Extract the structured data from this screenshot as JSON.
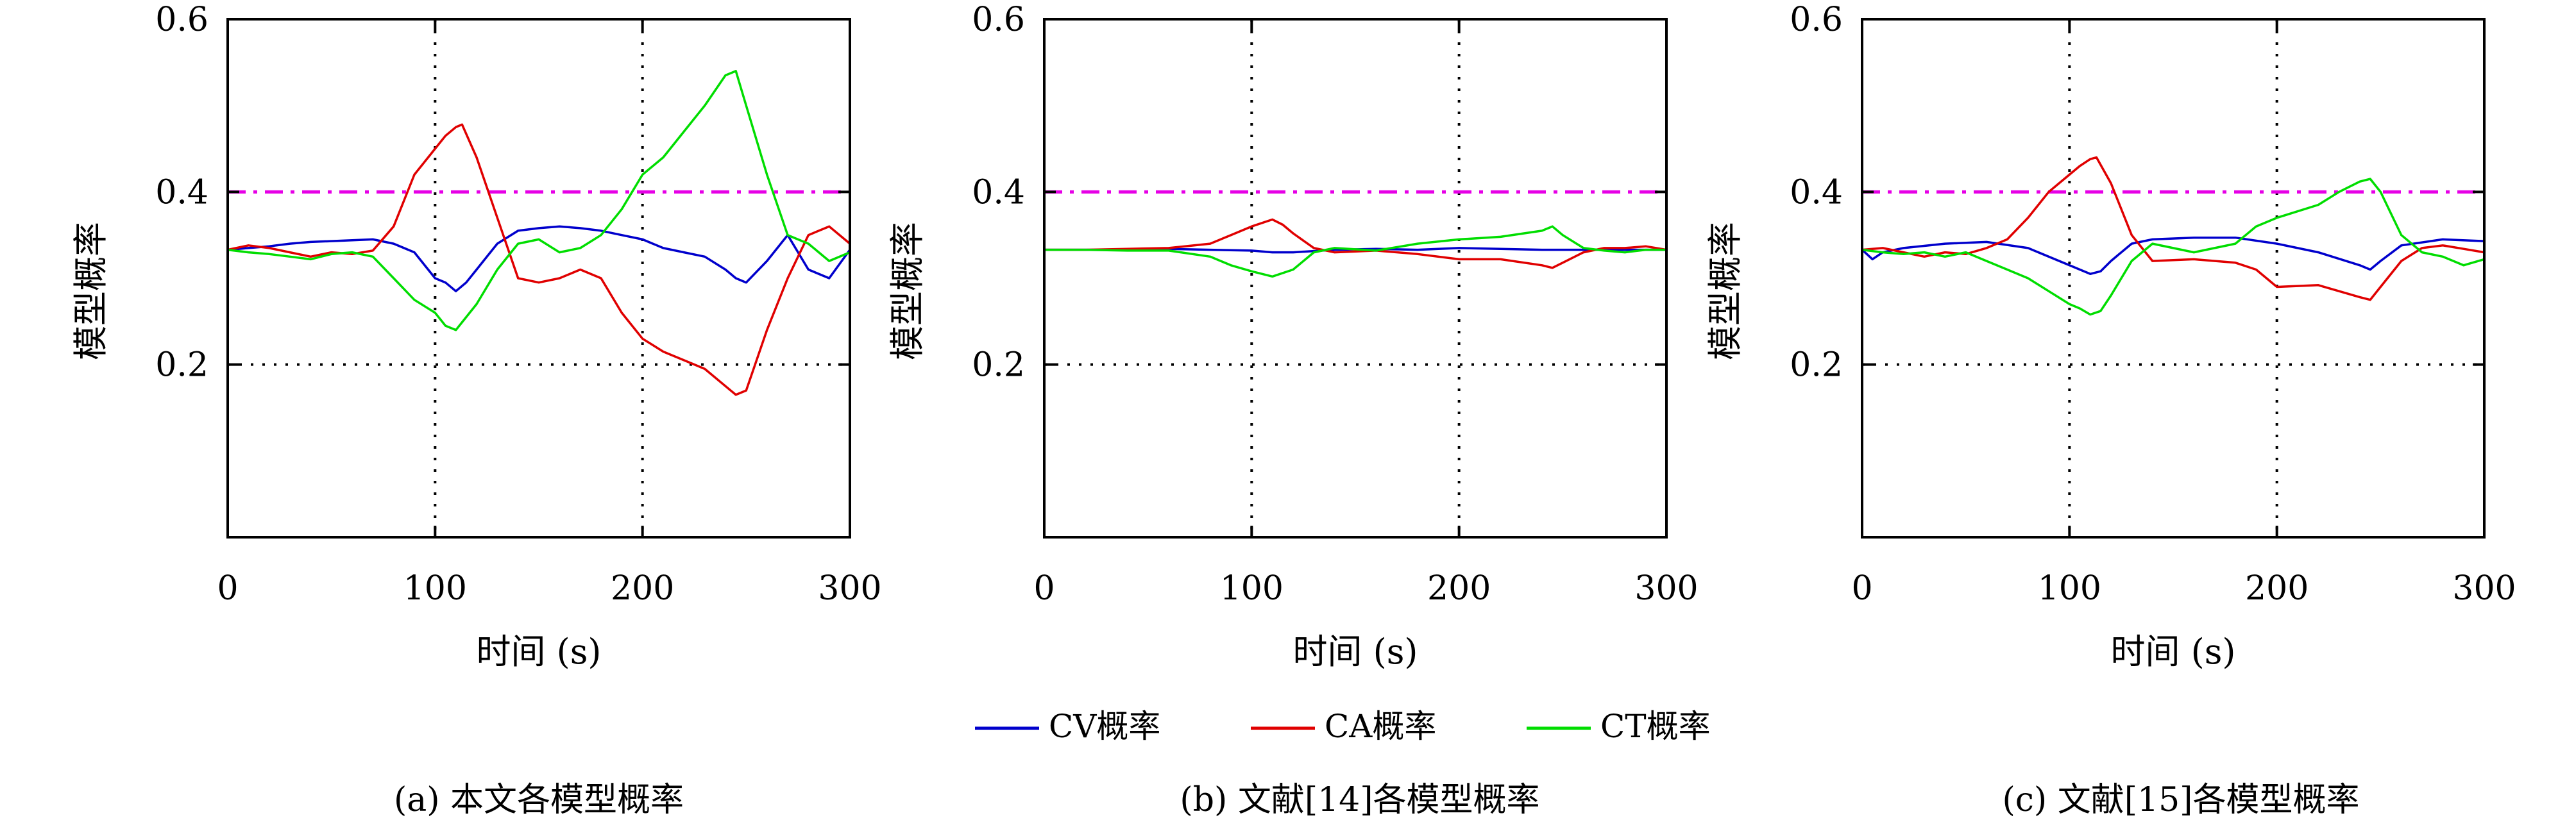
{
  "legend": [
    {
      "label": "CV概率",
      "color": "#0000cc"
    },
    {
      "label": "CA概率",
      "color": "#e00000"
    },
    {
      "label": "CT概率",
      "color": "#00dd00"
    }
  ],
  "reference_color": "#e600e6",
  "chart_data": [
    {
      "type": "line",
      "caption": "(a) 本文各模型概率",
      "xlabel": "时间 (s)",
      "ylabel": "模型概率",
      "xlim": [
        0,
        300
      ],
      "ylim": [
        0,
        0.6
      ],
      "xticks": [
        0,
        100,
        200,
        300
      ],
      "yticks": [
        0.2,
        0.4,
        0.6
      ],
      "grid": "dotted",
      "reference_line": 0.4,
      "series": [
        {
          "name": "CV概率",
          "x": [
            0,
            10,
            20,
            30,
            40,
            50,
            60,
            70,
            80,
            90,
            100,
            105,
            110,
            115,
            120,
            130,
            140,
            150,
            160,
            170,
            180,
            190,
            200,
            210,
            220,
            230,
            240,
            245,
            250,
            260,
            270,
            280,
            290,
            300
          ],
          "y": [
            0.333,
            0.335,
            0.337,
            0.34,
            0.342,
            0.343,
            0.344,
            0.345,
            0.34,
            0.33,
            0.3,
            0.295,
            0.285,
            0.295,
            0.31,
            0.34,
            0.355,
            0.358,
            0.36,
            0.358,
            0.355,
            0.35,
            0.345,
            0.335,
            0.33,
            0.325,
            0.31,
            0.3,
            0.295,
            0.32,
            0.35,
            0.31,
            0.3,
            0.333
          ]
        },
        {
          "name": "CA概率",
          "x": [
            0,
            10,
            20,
            30,
            40,
            50,
            60,
            70,
            80,
            90,
            100,
            105,
            110,
            113,
            120,
            130,
            140,
            150,
            160,
            170,
            180,
            190,
            200,
            210,
            220,
            230,
            240,
            245,
            250,
            260,
            270,
            280,
            290,
            300
          ],
          "y": [
            0.333,
            0.338,
            0.335,
            0.33,
            0.325,
            0.33,
            0.328,
            0.332,
            0.36,
            0.42,
            0.45,
            0.465,
            0.475,
            0.478,
            0.44,
            0.37,
            0.3,
            0.295,
            0.3,
            0.31,
            0.3,
            0.26,
            0.23,
            0.215,
            0.205,
            0.195,
            0.175,
            0.165,
            0.17,
            0.24,
            0.3,
            0.35,
            0.36,
            0.34
          ]
        },
        {
          "name": "CT概率",
          "x": [
            0,
            10,
            20,
            30,
            40,
            50,
            60,
            70,
            80,
            90,
            100,
            105,
            110,
            120,
            130,
            140,
            150,
            160,
            170,
            180,
            190,
            200,
            210,
            220,
            230,
            240,
            245,
            250,
            260,
            270,
            280,
            290,
            300
          ],
          "y": [
            0.333,
            0.33,
            0.328,
            0.325,
            0.322,
            0.328,
            0.33,
            0.325,
            0.3,
            0.275,
            0.26,
            0.245,
            0.24,
            0.27,
            0.31,
            0.34,
            0.345,
            0.33,
            0.335,
            0.35,
            0.38,
            0.42,
            0.44,
            0.47,
            0.5,
            0.535,
            0.54,
            0.5,
            0.42,
            0.35,
            0.34,
            0.32,
            0.33
          ]
        }
      ]
    },
    {
      "type": "line",
      "caption": "(b) 文献[14]各模型概率",
      "xlabel": "时间 (s)",
      "ylabel": "模型概率",
      "xlim": [
        0,
        300
      ],
      "ylim": [
        0,
        0.6
      ],
      "xticks": [
        0,
        100,
        200,
        300
      ],
      "yticks": [
        0.2,
        0.4,
        0.6
      ],
      "grid": "dotted",
      "reference_line": 0.4,
      "series": [
        {
          "name": "CV概率",
          "x": [
            0,
            20,
            40,
            60,
            80,
            100,
            110,
            120,
            140,
            160,
            180,
            200,
            220,
            240,
            260,
            280,
            300
          ],
          "y": [
            0.333,
            0.333,
            0.333,
            0.334,
            0.333,
            0.332,
            0.33,
            0.33,
            0.333,
            0.334,
            0.333,
            0.335,
            0.334,
            0.333,
            0.333,
            0.333,
            0.333
          ]
        },
        {
          "name": "CA概率",
          "x": [
            0,
            20,
            40,
            60,
            80,
            90,
            100,
            110,
            115,
            120,
            130,
            140,
            160,
            180,
            200,
            220,
            240,
            245,
            250,
            260,
            270,
            280,
            290,
            300
          ],
          "y": [
            0.333,
            0.333,
            0.334,
            0.335,
            0.34,
            0.35,
            0.36,
            0.368,
            0.362,
            0.352,
            0.335,
            0.33,
            0.332,
            0.328,
            0.322,
            0.322,
            0.315,
            0.312,
            0.318,
            0.33,
            0.335,
            0.335,
            0.337,
            0.333
          ]
        },
        {
          "name": "CT概率",
          "x": [
            0,
            20,
            40,
            60,
            80,
            90,
            100,
            110,
            120,
            130,
            140,
            160,
            180,
            200,
            220,
            240,
            245,
            250,
            260,
            270,
            280,
            290,
            300
          ],
          "y": [
            0.333,
            0.333,
            0.332,
            0.332,
            0.325,
            0.315,
            0.308,
            0.302,
            0.31,
            0.33,
            0.335,
            0.332,
            0.34,
            0.345,
            0.348,
            0.355,
            0.36,
            0.35,
            0.335,
            0.332,
            0.33,
            0.333,
            0.333
          ]
        }
      ]
    },
    {
      "type": "line",
      "caption": "(c) 文献[15]各模型概率",
      "xlabel": "时间 (s)",
      "ylabel": "模型概率",
      "xlim": [
        0,
        300
      ],
      "ylim": [
        0,
        0.6
      ],
      "xticks": [
        0,
        100,
        200,
        300
      ],
      "yticks": [
        0.2,
        0.4,
        0.6
      ],
      "grid": "dotted",
      "reference_line": 0.4,
      "series": [
        {
          "name": "CV概率",
          "x": [
            0,
            5,
            10,
            20,
            40,
            60,
            80,
            100,
            110,
            115,
            120,
            130,
            140,
            160,
            180,
            200,
            220,
            240,
            245,
            250,
            260,
            280,
            300
          ],
          "y": [
            0.333,
            0.322,
            0.33,
            0.335,
            0.34,
            0.342,
            0.335,
            0.315,
            0.305,
            0.308,
            0.32,
            0.34,
            0.345,
            0.347,
            0.347,
            0.34,
            0.33,
            0.315,
            0.31,
            0.32,
            0.338,
            0.345,
            0.343
          ]
        },
        {
          "name": "CA概率",
          "x": [
            0,
            10,
            20,
            30,
            40,
            50,
            60,
            70,
            80,
            90,
            100,
            105,
            110,
            113,
            120,
            130,
            140,
            160,
            180,
            190,
            200,
            220,
            240,
            245,
            250,
            260,
            270,
            280,
            290,
            300
          ],
          "y": [
            0.333,
            0.335,
            0.33,
            0.325,
            0.33,
            0.328,
            0.335,
            0.345,
            0.37,
            0.4,
            0.42,
            0.43,
            0.438,
            0.44,
            0.41,
            0.35,
            0.32,
            0.322,
            0.318,
            0.31,
            0.29,
            0.292,
            0.278,
            0.275,
            0.29,
            0.32,
            0.335,
            0.338,
            0.334,
            0.33
          ]
        },
        {
          "name": "CT概率",
          "x": [
            0,
            10,
            20,
            30,
            40,
            50,
            60,
            70,
            80,
            90,
            100,
            105,
            110,
            115,
            120,
            130,
            140,
            160,
            180,
            190,
            200,
            220,
            230,
            240,
            245,
            250,
            260,
            270,
            280,
            290,
            300
          ],
          "y": [
            0.333,
            0.33,
            0.328,
            0.33,
            0.325,
            0.33,
            0.32,
            0.31,
            0.3,
            0.285,
            0.27,
            0.265,
            0.258,
            0.262,
            0.28,
            0.32,
            0.34,
            0.33,
            0.34,
            0.36,
            0.37,
            0.385,
            0.4,
            0.412,
            0.415,
            0.4,
            0.35,
            0.33,
            0.325,
            0.315,
            0.322
          ]
        }
      ]
    }
  ]
}
